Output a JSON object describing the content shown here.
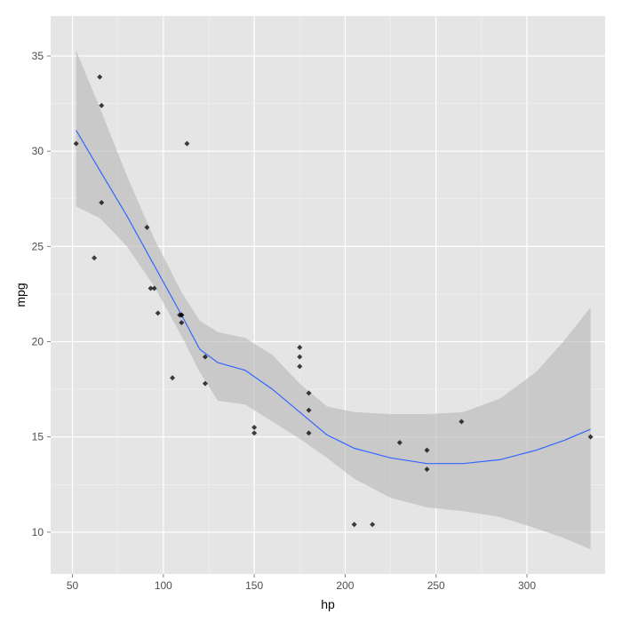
{
  "chart_data": {
    "type": "scatter",
    "title": "",
    "xlabel": "hp",
    "ylabel": "mpg",
    "xlim": [
      38,
      343
    ],
    "ylim": [
      7.8,
      37.1
    ],
    "x_ticks": [
      50,
      100,
      150,
      200,
      250,
      300
    ],
    "y_ticks": [
      10,
      15,
      20,
      25,
      30,
      35
    ],
    "grid": true,
    "colors": {
      "panel_background": "#e5e5e5",
      "grid_major": "#ffffff",
      "grid_minor": "#f2f2f2",
      "points": "#000000",
      "smooth_line": "#3366ff",
      "confidence_band": "#b5b5b5"
    },
    "points": [
      {
        "x": 110,
        "y": 21.0
      },
      {
        "x": 110,
        "y": 21.4
      },
      {
        "x": 93,
        "y": 22.8
      },
      {
        "x": 110,
        "y": 21.4
      },
      {
        "x": 175,
        "y": 18.7
      },
      {
        "x": 105,
        "y": 18.1
      },
      {
        "x": 245,
        "y": 14.3
      },
      {
        "x": 62,
        "y": 24.4
      },
      {
        "x": 95,
        "y": 22.8
      },
      {
        "x": 123,
        "y": 19.2
      },
      {
        "x": 123,
        "y": 17.8
      },
      {
        "x": 180,
        "y": 16.4
      },
      {
        "x": 180,
        "y": 17.3
      },
      {
        "x": 180,
        "y": 15.2
      },
      {
        "x": 205,
        "y": 10.4
      },
      {
        "x": 215,
        "y": 10.4
      },
      {
        "x": 230,
        "y": 14.7
      },
      {
        "x": 66,
        "y": 32.4
      },
      {
        "x": 52,
        "y": 30.4
      },
      {
        "x": 65,
        "y": 33.9
      },
      {
        "x": 97,
        "y": 21.5
      },
      {
        "x": 150,
        "y": 15.5
      },
      {
        "x": 150,
        "y": 15.2
      },
      {
        "x": 245,
        "y": 13.3
      },
      {
        "x": 175,
        "y": 19.2
      },
      {
        "x": 66,
        "y": 27.3
      },
      {
        "x": 91,
        "y": 26.0
      },
      {
        "x": 113,
        "y": 30.4
      },
      {
        "x": 264,
        "y": 15.8
      },
      {
        "x": 175,
        "y": 19.7
      },
      {
        "x": 335,
        "y": 15.0
      },
      {
        "x": 109,
        "y": 21.4
      }
    ],
    "smooth": [
      {
        "x": 52,
        "y": 31.1,
        "lower": 27.1,
        "upper": 35.3
      },
      {
        "x": 65,
        "y": 29.0,
        "lower": 26.5,
        "upper": 32.3
      },
      {
        "x": 80,
        "y": 26.6,
        "lower": 25.0,
        "upper": 28.7
      },
      {
        "x": 95,
        "y": 24.0,
        "lower": 22.9,
        "upper": 25.4
      },
      {
        "x": 110,
        "y": 21.4,
        "lower": 20.3,
        "upper": 22.6
      },
      {
        "x": 120,
        "y": 19.6,
        "lower": 18.4,
        "upper": 21.1
      },
      {
        "x": 130,
        "y": 18.9,
        "lower": 16.9,
        "upper": 20.5
      },
      {
        "x": 145,
        "y": 18.5,
        "lower": 16.7,
        "upper": 20.2
      },
      {
        "x": 160,
        "y": 17.5,
        "lower": 15.8,
        "upper": 19.3
      },
      {
        "x": 175,
        "y": 16.3,
        "lower": 14.9,
        "upper": 17.8
      },
      {
        "x": 190,
        "y": 15.1,
        "lower": 13.9,
        "upper": 16.6
      },
      {
        "x": 205,
        "y": 14.4,
        "lower": 12.8,
        "upper": 16.3
      },
      {
        "x": 225,
        "y": 13.9,
        "lower": 11.8,
        "upper": 16.2
      },
      {
        "x": 245,
        "y": 13.6,
        "lower": 11.3,
        "upper": 16.2
      },
      {
        "x": 265,
        "y": 13.6,
        "lower": 11.1,
        "upper": 16.3
      },
      {
        "x": 285,
        "y": 13.8,
        "lower": 10.8,
        "upper": 17.0
      },
      {
        "x": 305,
        "y": 14.3,
        "lower": 10.2,
        "upper": 18.4
      },
      {
        "x": 320,
        "y": 14.8,
        "lower": 9.7,
        "upper": 20.0
      },
      {
        "x": 335,
        "y": 15.4,
        "lower": 9.1,
        "upper": 21.8
      }
    ]
  }
}
